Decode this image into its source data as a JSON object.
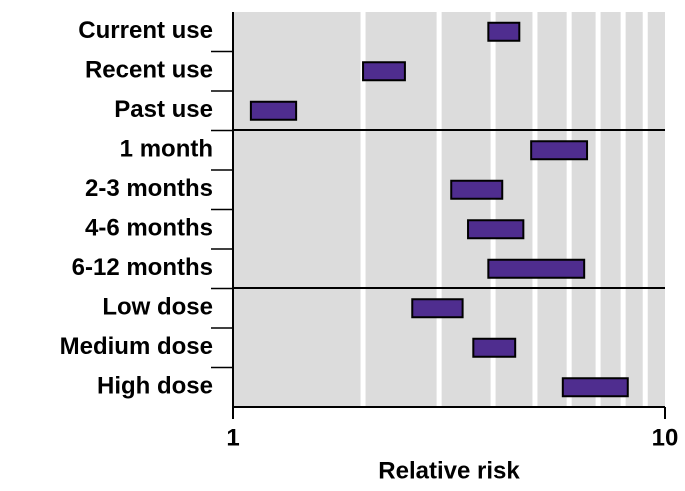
{
  "chart_data": {
    "type": "range_bar",
    "orientation": "horizontal",
    "categories": [
      "Current use",
      "Recent use",
      "Past use",
      "1 month",
      "2-3 months",
      "4-6 months",
      "6-12 months",
      "Low dose",
      "Medium dose",
      "High dose"
    ],
    "low": [
      3.9,
      2.0,
      1.1,
      4.9,
      3.2,
      3.5,
      3.9,
      2.6,
      3.6,
      5.8
    ],
    "high": [
      4.6,
      2.5,
      1.4,
      6.6,
      4.2,
      4.7,
      6.5,
      3.4,
      4.5,
      8.2
    ],
    "color": "#4f2d8f",
    "xlabel": "Relative risk",
    "xscale": "log",
    "xlim": [
      1,
      10
    ],
    "xticks": [
      1,
      10
    ],
    "minor_xticks": [
      2,
      3,
      4,
      5,
      6,
      7,
      8,
      9
    ],
    "grid": true
  }
}
